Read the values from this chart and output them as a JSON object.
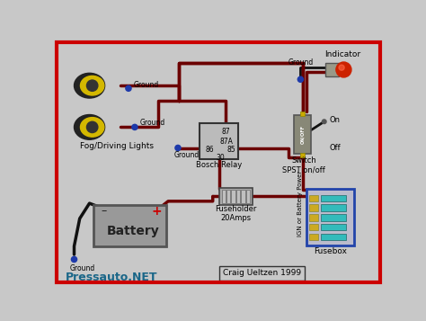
{
  "bg_color": "#c8c8c8",
  "border_color": "#cc0000",
  "wire_color": "#6b0000",
  "wire_color2": "#111111",
  "ground_dot_color": "#1e3aaa",
  "text_bottom_left": "Pressauto.NET",
  "text_bottom_center": "Craig Ueltzen 1999",
  "text_fog_lights": "Fog/Driving Lights",
  "text_bosch_relay": "Bosch Relay",
  "text_fuseholder": "Fuseholder\n20Amps",
  "text_battery": "Battery",
  "text_fusebox": "Fusebox",
  "text_indicator": "Indicator",
  "text_switch": "Switch\nSPST on/off",
  "text_on": "On",
  "text_off": "Off",
  "text_ign": "IGN or Battery Power",
  "text_ground": "Ground"
}
